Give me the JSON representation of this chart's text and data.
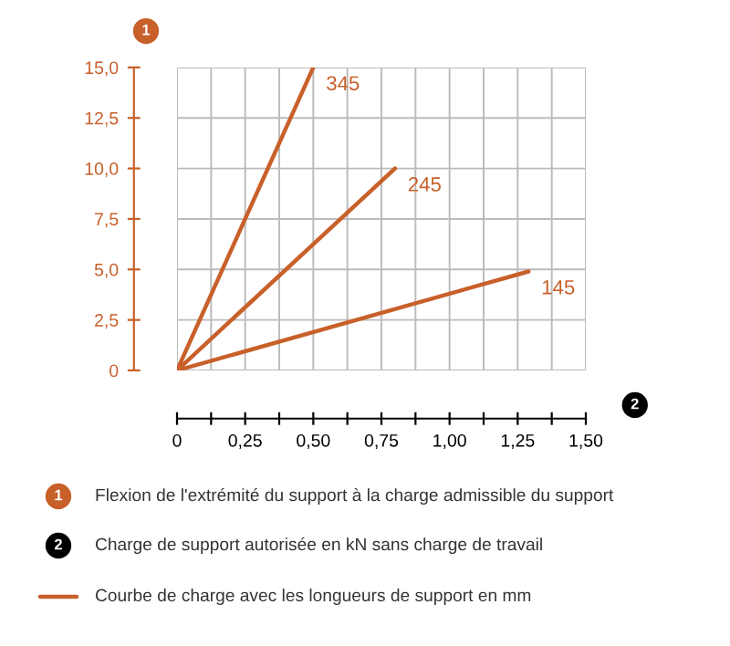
{
  "chart_data": {
    "type": "line",
    "ylabel": "1",
    "xlabel": "2",
    "series": [
      {
        "name": "345",
        "color": "#c8602a",
        "x": [
          0,
          0.5
        ],
        "values": [
          0,
          15
        ]
      },
      {
        "name": "245",
        "color": "#c8602a",
        "x": [
          0,
          0.8
        ],
        "values": [
          0,
          10
        ]
      },
      {
        "name": "145",
        "color": "#c8602a",
        "x": [
          0,
          1.29
        ],
        "values": [
          0,
          4.9
        ]
      }
    ],
    "xlim": [
      0,
      1.5
    ],
    "ylim": [
      0,
      15
    ],
    "xticks": [
      0,
      {
        "value": 0.125,
        "label": null
      },
      {
        "value": 0.25,
        "label": "0,25"
      },
      {
        "value": 0.375,
        "label": null
      },
      {
        "value": 0.5,
        "label": "0,50"
      },
      {
        "value": 0.625,
        "label": null
      },
      {
        "value": 0.75,
        "label": "0,75"
      },
      {
        "value": 0.875,
        "label": null
      },
      {
        "value": 1.0,
        "label": "1,00"
      },
      {
        "value": 1.125,
        "label": null
      },
      {
        "value": 1.25,
        "label": "1,25"
      },
      {
        "value": 1.375,
        "label": null
      },
      {
        "value": 1.5,
        "label": "1,50"
      }
    ],
    "yticks": [
      0,
      {
        "value": 2.5,
        "label": "2,5"
      },
      {
        "value": 5,
        "label": "5,0"
      },
      {
        "value": 7.5,
        "label": "7,5"
      },
      {
        "value": 10,
        "label": "10,0"
      },
      {
        "value": 12.5,
        "label": "12,5"
      },
      {
        "value": 15,
        "label": "15,0"
      }
    ],
    "grid": true,
    "marker": "none",
    "line_style": "solid",
    "legend": false,
    "annotations": [
      "Flexion de l'extrémité du support à la charge admissible du support",
      "Charge de support autorisée en kN sans charge de travail",
      "Courbe de charge avec les longueurs de support en mm"
    ]
  }
}
